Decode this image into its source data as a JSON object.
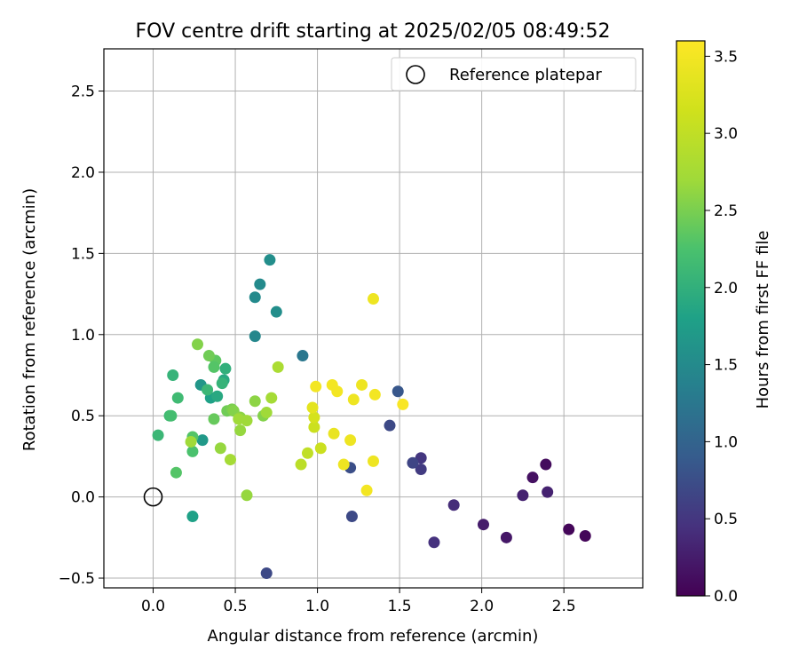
{
  "chart_data": {
    "type": "scatter",
    "title": "FOV centre drift starting at 2025/02/05 08:49:52",
    "xlabel": "Angular distance from reference (arcmin)",
    "ylabel": "Rotation from reference (arcmin)",
    "xlim": [
      -0.3,
      2.98
    ],
    "ylim": [
      -0.56,
      2.76
    ],
    "xticks": [
      0.0,
      0.5,
      1.0,
      1.5,
      2.0,
      2.5
    ],
    "xtick_labels": [
      "0.0",
      "0.5",
      "1.0",
      "1.5",
      "2.0",
      "2.5"
    ],
    "yticks": [
      -0.5,
      0.0,
      0.5,
      1.0,
      1.5,
      2.0,
      2.5
    ],
    "ytick_labels": [
      "−0.5",
      "0.0",
      "0.5",
      "1.0",
      "1.5",
      "2.0",
      "2.5"
    ],
    "grid": true,
    "legend": {
      "position": "top-right",
      "entries": [
        "Reference platepar"
      ]
    },
    "reference_point": {
      "x": 0.0,
      "y": 0.0,
      "marker": "open-circle"
    },
    "colorbar": {
      "label": "Hours from first FF file",
      "colormap": "viridis",
      "range": [
        0.0,
        3.6
      ],
      "ticks": [
        0.0,
        0.5,
        1.0,
        1.5,
        2.0,
        2.5,
        3.0,
        3.5
      ],
      "tick_labels": [
        "0.0",
        "0.5",
        "1.0",
        "1.5",
        "2.0",
        "2.5",
        "3.0",
        "3.5"
      ]
    },
    "series": [
      {
        "x": [
          2.53,
          2.63,
          2.39,
          2.31,
          2.15,
          2.01,
          2.4,
          2.25,
          1.83,
          1.71,
          1.63,
          1.63,
          1.58,
          1.44,
          1.21,
          1.2,
          1.49,
          0.69,
          0.91,
          0.62,
          0.62,
          0.65,
          0.71,
          0.75,
          0.29,
          0.3,
          0.24,
          0.35,
          0.39,
          0.43,
          0.44,
          0.42,
          0.33,
          0.12,
          0.03,
          0.15,
          0.1,
          0.11,
          0.14,
          0.24,
          0.24,
          0.38,
          0.37,
          0.37,
          0.27,
          0.34,
          0.45,
          0.48,
          0.49,
          0.53,
          0.53,
          0.52,
          0.57,
          0.62,
          0.67,
          0.69,
          0.72,
          0.76,
          0.23,
          0.41,
          0.47,
          0.57,
          0.9,
          0.94,
          1.02,
          0.98,
          0.98,
          0.97,
          1.1,
          1.2,
          0.99,
          1.09,
          1.12,
          1.22,
          1.27,
          1.35,
          1.34,
          1.52,
          1.16,
          1.3,
          1.34
        ],
        "y": [
          -0.2,
          -0.24,
          0.2,
          0.12,
          -0.25,
          -0.17,
          0.03,
          0.01,
          -0.05,
          -0.28,
          0.24,
          0.17,
          0.21,
          0.44,
          -0.12,
          0.18,
          0.65,
          -0.47,
          0.87,
          0.99,
          1.23,
          1.31,
          1.46,
          1.14,
          0.69,
          0.35,
          -0.12,
          0.61,
          0.62,
          0.72,
          0.79,
          0.7,
          0.66,
          0.75,
          0.38,
          0.61,
          0.5,
          0.5,
          0.15,
          0.28,
          0.37,
          0.84,
          0.8,
          0.48,
          0.94,
          0.87,
          0.53,
          0.54,
          0.53,
          0.49,
          0.41,
          0.48,
          0.47,
          0.59,
          0.5,
          0.52,
          0.61,
          0.8,
          0.34,
          0.3,
          0.23,
          0.01,
          0.2,
          0.27,
          0.3,
          0.43,
          0.49,
          0.55,
          0.39,
          0.35,
          0.68,
          0.69,
          0.65,
          0.6,
          0.69,
          0.63,
          1.22,
          0.57,
          0.2,
          0.04,
          0.22
        ],
        "c": [
          0.05,
          0.05,
          0.1,
          0.15,
          0.2,
          0.25,
          0.3,
          0.3,
          0.4,
          0.45,
          0.5,
          0.55,
          0.65,
          0.7,
          0.7,
          0.75,
          0.85,
          0.7,
          1.25,
          1.45,
          1.5,
          1.5,
          1.55,
          1.55,
          1.65,
          1.7,
          1.8,
          1.8,
          1.9,
          1.9,
          2.0,
          2.05,
          2.1,
          2.05,
          2.1,
          2.15,
          2.15,
          2.2,
          2.3,
          2.25,
          2.3,
          2.35,
          2.3,
          2.4,
          2.55,
          2.45,
          2.45,
          2.5,
          2.55,
          2.6,
          2.65,
          2.7,
          2.7,
          2.6,
          2.55,
          2.7,
          2.75,
          2.8,
          2.7,
          2.65,
          2.75,
          2.65,
          2.95,
          3.0,
          3.1,
          3.1,
          3.2,
          3.35,
          3.4,
          3.45,
          3.5,
          3.5,
          3.5,
          3.45,
          3.45,
          3.5,
          3.45,
          3.55,
          3.45,
          3.5,
          3.45
        ]
      }
    ]
  }
}
